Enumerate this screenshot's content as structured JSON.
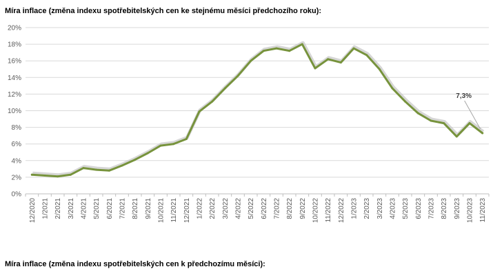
{
  "headings": {
    "chart_title": "Míra inflace (změna indexu spotřebitelských cen ke stejnému měsíci předchozího roku):",
    "next_section_title": "Míra inflace (změna indexu spotřebitelských cen k předchozímu měsíci):"
  },
  "chart_data": {
    "type": "line",
    "title": "Míra inflace (změna indexu spotřebitelských cen ke stejnému měsíci předchozího roku):",
    "xlabel": "",
    "ylabel": "",
    "categories": [
      "12/2020",
      "1/2021",
      "2/2021",
      "3/2021",
      "4/2021",
      "5/2021",
      "6/2021",
      "7/2021",
      "8/2021",
      "9/2021",
      "10/2021",
      "11/2021",
      "12/2021",
      "1/2022",
      "2/2022",
      "3/2022",
      "4/2022",
      "5/2022",
      "6/2022",
      "7/2022",
      "8/2022",
      "9/2022",
      "10/2022",
      "11/2022",
      "12/2022",
      "1/2023",
      "2/2023",
      "3/2023",
      "4/2023",
      "5/2023",
      "6/2023",
      "7/2023",
      "8/2023",
      "9/2023",
      "10/2023",
      "11/2023"
    ],
    "series": [
      {
        "values": [
          2.3,
          2.2,
          2.1,
          2.3,
          3.1,
          2.9,
          2.8,
          3.4,
          4.1,
          4.9,
          5.8,
          6.0,
          6.6,
          9.9,
          11.1,
          12.7,
          14.2,
          16.0,
          17.2,
          17.5,
          17.2,
          18.0,
          15.1,
          16.2,
          15.8,
          17.5,
          16.7,
          15.0,
          12.7,
          11.1,
          9.7,
          8.8,
          8.5,
          6.9,
          8.5,
          7.3
        ],
        "color": "#77933c"
      }
    ],
    "ylim": [
      0,
      20
    ],
    "yticks": [
      "0%",
      "2%",
      "4%",
      "6%",
      "8%",
      "10%",
      "12%",
      "14%",
      "16%",
      "18%",
      "20%"
    ],
    "grid": true,
    "legend": "none",
    "annotation": {
      "text": "7,3%",
      "category": "11/2023",
      "value": 7.3
    },
    "colors": {
      "line": "#77933c",
      "shadow": "#c8c8c8",
      "grid": "#d9d9d9",
      "axis": "#bfbfbf"
    }
  }
}
